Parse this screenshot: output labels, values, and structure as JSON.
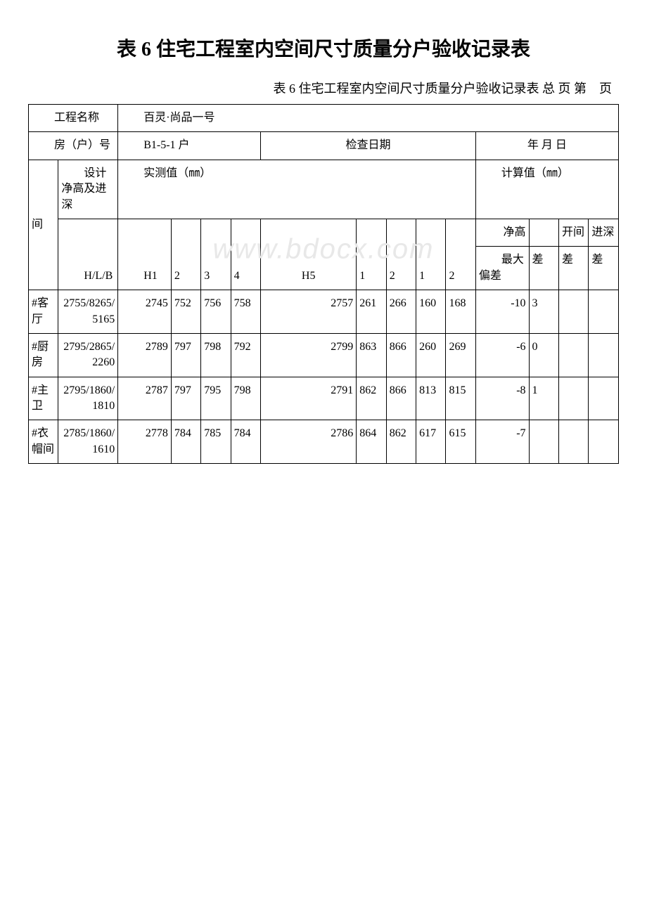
{
  "title": "表 6 住宅工程室内空间尺寸质量分户验收记录表",
  "subtitle": "表 6  住宅工程室内空间尺寸质量分户验收记录表 总 页 第　页",
  "header": {
    "project_label": "工程名称",
    "project_value": "百灵·尚品一号",
    "room_label": "房（户）号",
    "room_value": "B1-5-1 户",
    "date_label": "检查日期",
    "date_value": "年 月 日"
  },
  "table_headers": {
    "room_col": "间",
    "spec_col": "设计净高及进深",
    "measured_label": "实测值（㎜）",
    "calc_label": "计算值（㎜）",
    "h_lb": "H/L/B",
    "h1": "H1",
    "h2": "2",
    "h3": "3",
    "h4": "4",
    "h5": "H5",
    "l1": "1",
    "l2": "2",
    "b1": "1",
    "b2": "2",
    "net_height": "净高",
    "kaijian": "开间",
    "jinshen": "进深",
    "max_dev": "最大偏差",
    "diff": "差",
    "diff2": "差",
    "diff3": "差"
  },
  "rows": [
    {
      "room": "#客厅",
      "spec": "2755/8265/5165",
      "h1": "2745",
      "h2": "752",
      "h3": "756",
      "h4": "758",
      "h5": "2757",
      "l1": "261",
      "l2": "266",
      "b1": "160",
      "b2": "168",
      "max_dev": "-10",
      "diff": "3",
      "diff2": "",
      "diff3": ""
    },
    {
      "room": "#厨房",
      "spec": "2795/2865/2260",
      "h1": "2789",
      "h2": "797",
      "h3": "798",
      "h4": "792",
      "h5": "2799",
      "l1": "863",
      "l2": "866",
      "b1": "260",
      "b2": "269",
      "max_dev": "-6",
      "diff": "0",
      "diff2": "",
      "diff3": ""
    },
    {
      "room": "#主卫",
      "spec": "2795/1860/1810",
      "h1": "2787",
      "h2": "797",
      "h3": "795",
      "h4": "798",
      "h5": "2791",
      "l1": "862",
      "l2": "866",
      "b1": "813",
      "b2": "815",
      "max_dev": "-8",
      "diff": "1",
      "diff2": "",
      "diff3": ""
    },
    {
      "room": "#衣帽间",
      "spec": "2785/1860/1610",
      "h1": "2778",
      "h2": "784",
      "h3": "785",
      "h4": "784",
      "h5": "2786",
      "l1": "864",
      "l2": "862",
      "b1": "617",
      "b2": "615",
      "max_dev": "-7",
      "diff": "",
      "diff2": "",
      "diff3": ""
    }
  ],
  "watermark": "www.bdocx.com"
}
